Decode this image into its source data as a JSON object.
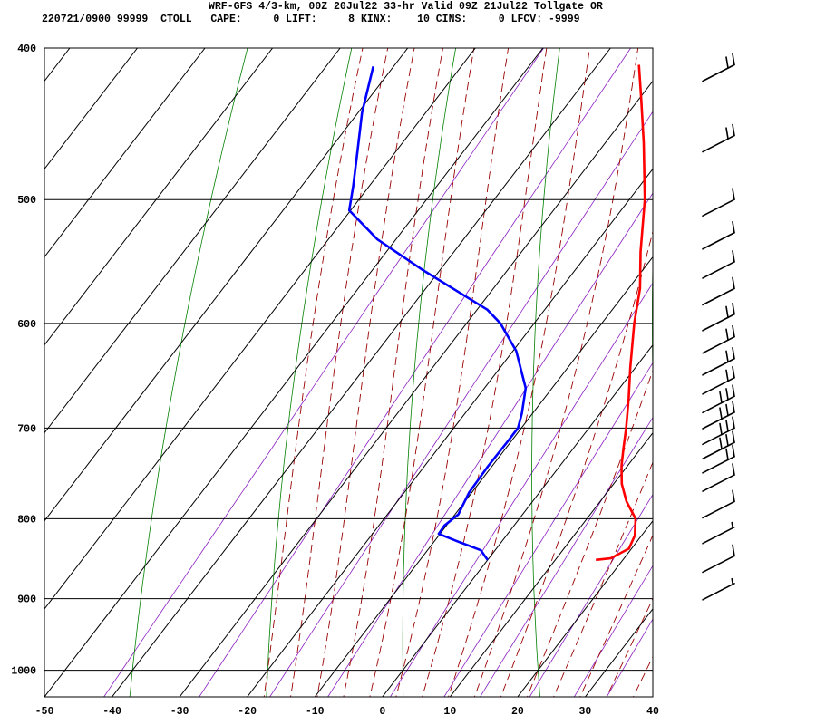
{
  "header": {
    "title": "WRF-GFS 4/3-km, 00Z 20Jul22 33-hr Valid 09Z 21Jul22 Tollgate OR",
    "info": "220721/0900 99999  CTOLL   CAPE:     0 LIFT:     8 KINX:    10 CINS:     0 LFCV: -9999"
  },
  "colors": {
    "temperature": "#ff0000",
    "dewpoint": "#0000ff",
    "isotherms": "#000000",
    "dry_adiabats": "#008000",
    "moist_adiabats": "#990000",
    "mixing_ratio": "#8b1fc2",
    "wind_barbs": "#000000"
  },
  "chart_data": {
    "type": "line",
    "subtype": "skew-t log-p sounding",
    "title": "WRF-GFS 4/3-km, 00Z 20Jul22 33-hr Valid 09Z 21Jul22 Tollgate OR",
    "xlabel": "",
    "ylabel": "",
    "x_range_at_bottom": [
      -50,
      40
    ],
    "pressure_range": [
      400,
      1040
    ],
    "x_ticks": [
      -50,
      -40,
      -30,
      -20,
      -10,
      0,
      10,
      20,
      30,
      40
    ],
    "pressure_ticks": [
      400,
      500,
      600,
      700,
      800,
      900,
      1000
    ],
    "y_scale": "log",
    "grid": true,
    "series": [
      {
        "key": "temperature",
        "points": [
          {
            "p": 850,
            "t": 16.0
          },
          {
            "p": 848,
            "t": 18.0
          },
          {
            "p": 836,
            "t": 19.6
          },
          {
            "p": 820,
            "t": 19.0
          },
          {
            "p": 800,
            "t": 17.2
          },
          {
            "p": 780,
            "t": 13.9
          },
          {
            "p": 760,
            "t": 11.2
          },
          {
            "p": 740,
            "t": 9.1
          },
          {
            "p": 720,
            "t": 7.3
          },
          {
            "p": 700,
            "t": 5.5
          },
          {
            "p": 670,
            "t": 2.5
          },
          {
            "p": 640,
            "t": -0.8
          },
          {
            "p": 600,
            "t": -5.2
          },
          {
            "p": 570,
            "t": -8.3
          },
          {
            "p": 540,
            "t": -12.4
          },
          {
            "p": 500,
            "t": -17.7
          },
          {
            "p": 460,
            "t": -24.3
          },
          {
            "p": 430,
            "t": -29.9
          },
          {
            "p": 410,
            "t": -33.9
          }
        ]
      },
      {
        "key": "dewpoint",
        "points": [
          {
            "p": 850,
            "t": 0.0
          },
          {
            "p": 845,
            "t": -0.9
          },
          {
            "p": 838,
            "t": -2.1
          },
          {
            "p": 827,
            "t": -6.6
          },
          {
            "p": 818,
            "t": -10.2
          },
          {
            "p": 808,
            "t": -10.3
          },
          {
            "p": 795,
            "t": -9.5
          },
          {
            "p": 770,
            "t": -10.4
          },
          {
            "p": 740,
            "t": -10.6
          },
          {
            "p": 715,
            "t": -10.5
          },
          {
            "p": 700,
            "t": -10.5
          },
          {
            "p": 685,
            "t": -11.6
          },
          {
            "p": 660,
            "t": -13.9
          },
          {
            "p": 625,
            "t": -19.5
          },
          {
            "p": 600,
            "t": -25.0
          },
          {
            "p": 588,
            "t": -28.5
          },
          {
            "p": 555,
            "t": -42.4
          },
          {
            "p": 530,
            "t": -52.8
          },
          {
            "p": 508,
            "t": -60.2
          },
          {
            "p": 490,
            "t": -62.4
          },
          {
            "p": 465,
            "t": -65.8
          },
          {
            "p": 440,
            "t": -69.4
          },
          {
            "p": 411,
            "t": -73.0
          }
        ]
      }
    ],
    "wind_barbs": [
      {
        "p": 410,
        "flags": 0,
        "full": 2,
        "half": 0
      },
      {
        "p": 455,
        "flags": 0,
        "full": 2,
        "half": 0
      },
      {
        "p": 500,
        "flags": 0,
        "full": 1,
        "half": 0
      },
      {
        "p": 525,
        "flags": 0,
        "full": 1,
        "half": 0
      },
      {
        "p": 548,
        "flags": 0,
        "full": 1,
        "half": 0
      },
      {
        "p": 570,
        "flags": 0,
        "full": 1,
        "half": 0
      },
      {
        "p": 592,
        "flags": 0,
        "full": 2,
        "half": 0
      },
      {
        "p": 612,
        "flags": 0,
        "full": 2,
        "half": 0
      },
      {
        "p": 632,
        "flags": 0,
        "full": 2,
        "half": 0
      },
      {
        "p": 650,
        "flags": 0,
        "full": 2,
        "half": 0
      },
      {
        "p": 668,
        "flags": 0,
        "full": 3,
        "half": 0
      },
      {
        "p": 684,
        "flags": 0,
        "full": 3,
        "half": 0
      },
      {
        "p": 700,
        "flags": 0,
        "full": 3,
        "half": 0
      },
      {
        "p": 715,
        "flags": 0,
        "full": 3,
        "half": 0
      },
      {
        "p": 730,
        "flags": 0,
        "full": 2,
        "half": 0
      },
      {
        "p": 750,
        "flags": 0,
        "full": 1,
        "half": 0
      },
      {
        "p": 780,
        "flags": 0,
        "full": 1,
        "half": 0
      },
      {
        "p": 810,
        "flags": 0,
        "full": 0,
        "half": 1
      },
      {
        "p": 845,
        "flags": 0,
        "full": 1,
        "half": 0
      },
      {
        "p": 880,
        "flags": 0,
        "full": 0,
        "half": 1
      }
    ]
  }
}
